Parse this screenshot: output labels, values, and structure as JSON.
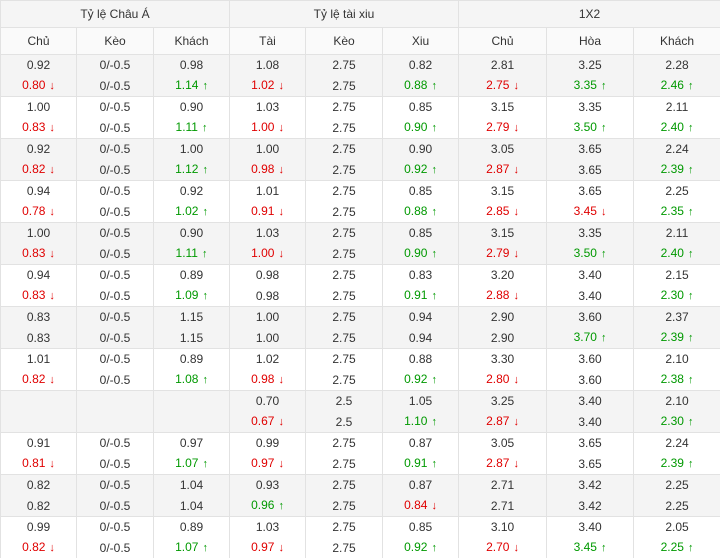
{
  "groups": [
    "Tỷ lệ Châu Á",
    "Tỷ lệ tài xiu",
    "1X2"
  ],
  "columns": [
    "Chủ",
    "Kèo",
    "Khách",
    "Tài",
    "Kèo",
    "Xiu",
    "Chủ",
    "Hòa",
    "Khách"
  ],
  "colors": {
    "down": "#e00000",
    "up": "#009900",
    "alt_row": "#f4f4f4"
  },
  "rows": [
    {
      "o": [
        "0.92",
        "0/-0.5",
        "0.98",
        "1.08",
        "2.75",
        "0.82",
        "2.81",
        "3.25",
        "2.28"
      ],
      "n": [
        "0.80",
        "0/-0.5",
        "1.14",
        "1.02",
        "2.75",
        "0.88",
        "2.75",
        "3.35",
        "2.46"
      ],
      "d": [
        "down",
        "",
        "up",
        "down",
        "",
        "up",
        "down",
        "up",
        "up"
      ]
    },
    {
      "o": [
        "1.00",
        "0/-0.5",
        "0.90",
        "1.03",
        "2.75",
        "0.85",
        "3.15",
        "3.35",
        "2.11"
      ],
      "n": [
        "0.83",
        "0/-0.5",
        "1.11",
        "1.00",
        "2.75",
        "0.90",
        "2.79",
        "3.50",
        "2.40"
      ],
      "d": [
        "down",
        "",
        "up",
        "down",
        "",
        "up",
        "down",
        "up",
        "up"
      ]
    },
    {
      "o": [
        "0.92",
        "0/-0.5",
        "1.00",
        "1.00",
        "2.75",
        "0.90",
        "3.05",
        "3.65",
        "2.24"
      ],
      "n": [
        "0.82",
        "0/-0.5",
        "1.12",
        "0.98",
        "2.75",
        "0.92",
        "2.87",
        "3.65",
        "2.39"
      ],
      "d": [
        "down",
        "",
        "up",
        "down",
        "",
        "up",
        "down",
        "",
        "up"
      ]
    },
    {
      "o": [
        "0.94",
        "0/-0.5",
        "0.92",
        "1.01",
        "2.75",
        "0.85",
        "3.15",
        "3.65",
        "2.25"
      ],
      "n": [
        "0.78",
        "0/-0.5",
        "1.02",
        "0.91",
        "2.75",
        "0.88",
        "2.85",
        "3.45",
        "2.35"
      ],
      "d": [
        "down",
        "",
        "up",
        "down",
        "",
        "up",
        "down",
        "down",
        "up"
      ]
    },
    {
      "o": [
        "1.00",
        "0/-0.5",
        "0.90",
        "1.03",
        "2.75",
        "0.85",
        "3.15",
        "3.35",
        "2.11"
      ],
      "n": [
        "0.83",
        "0/-0.5",
        "1.11",
        "1.00",
        "2.75",
        "0.90",
        "2.79",
        "3.50",
        "2.40"
      ],
      "d": [
        "down",
        "",
        "up",
        "down",
        "",
        "up",
        "down",
        "up",
        "up"
      ]
    },
    {
      "o": [
        "0.94",
        "0/-0.5",
        "0.89",
        "0.98",
        "2.75",
        "0.83",
        "3.20",
        "3.40",
        "2.15"
      ],
      "n": [
        "0.83",
        "0/-0.5",
        "1.09",
        "0.98",
        "2.75",
        "0.91",
        "2.88",
        "3.40",
        "2.30"
      ],
      "d": [
        "down",
        "",
        "up",
        "",
        "",
        "up",
        "down",
        "",
        "up"
      ]
    },
    {
      "o": [
        "0.83",
        "0/-0.5",
        "1.15",
        "1.00",
        "2.75",
        "0.94",
        "2.90",
        "3.60",
        "2.37"
      ],
      "n": [
        "0.83",
        "0/-0.5",
        "1.15",
        "1.00",
        "2.75",
        "0.94",
        "2.90",
        "3.70",
        "2.39"
      ],
      "d": [
        "",
        "",
        "",
        "",
        "",
        "",
        "",
        "up",
        "up"
      ]
    },
    {
      "o": [
        "1.01",
        "0/-0.5",
        "0.89",
        "1.02",
        "2.75",
        "0.88",
        "3.30",
        "3.60",
        "2.10"
      ],
      "n": [
        "0.82",
        "0/-0.5",
        "1.08",
        "0.98",
        "2.75",
        "0.92",
        "2.80",
        "3.60",
        "2.38"
      ],
      "d": [
        "down",
        "",
        "up",
        "down",
        "",
        "up",
        "down",
        "",
        "up"
      ]
    },
    {
      "o": [
        "",
        "",
        "",
        "0.70",
        "2.5",
        "1.05",
        "3.25",
        "3.40",
        "2.10"
      ],
      "n": [
        "",
        "",
        "",
        "0.67",
        "2.5",
        "1.10",
        "2.87",
        "3.40",
        "2.30"
      ],
      "d": [
        "",
        "",
        "",
        "down",
        "",
        "up",
        "down",
        "",
        "up"
      ]
    },
    {
      "o": [
        "0.91",
        "0/-0.5",
        "0.97",
        "0.99",
        "2.75",
        "0.87",
        "3.05",
        "3.65",
        "2.24"
      ],
      "n": [
        "0.81",
        "0/-0.5",
        "1.07",
        "0.97",
        "2.75",
        "0.91",
        "2.87",
        "3.65",
        "2.39"
      ],
      "d": [
        "down",
        "",
        "up",
        "down",
        "",
        "up",
        "down",
        "",
        "up"
      ]
    },
    {
      "o": [
        "0.82",
        "0/-0.5",
        "1.04",
        "0.93",
        "2.75",
        "0.87",
        "2.71",
        "3.42",
        "2.25"
      ],
      "n": [
        "0.82",
        "0/-0.5",
        "1.04",
        "0.96",
        "2.75",
        "0.84",
        "2.71",
        "3.42",
        "2.25"
      ],
      "d": [
        "",
        "",
        "",
        "up",
        "",
        "down",
        "",
        "",
        ""
      ]
    },
    {
      "o": [
        "0.99",
        "0/-0.5",
        "0.89",
        "1.03",
        "2.75",
        "0.85",
        "3.10",
        "3.40",
        "2.05"
      ],
      "n": [
        "0.82",
        "0/-0.5",
        "1.07",
        "0.97",
        "2.75",
        "0.92",
        "2.70",
        "3.45",
        "2.25"
      ],
      "d": [
        "down",
        "",
        "up",
        "down",
        "",
        "up",
        "down",
        "up",
        "up"
      ]
    }
  ]
}
